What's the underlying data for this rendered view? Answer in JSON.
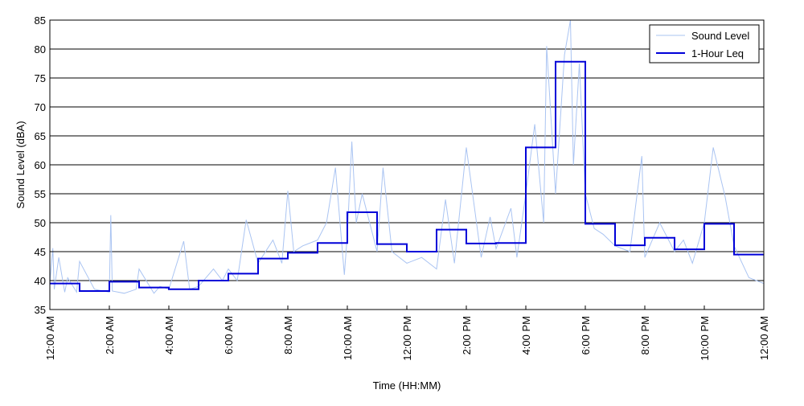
{
  "chart_data": {
    "type": "line",
    "title": "",
    "xlabel": "Time (HH:MM)",
    "ylabel": "Sound Level (dBA)",
    "xlim": [
      0,
      24
    ],
    "ylim": [
      35,
      85
    ],
    "grid": "horizontal",
    "legend_position": "top-right",
    "x_ticks": [
      {
        "x": 0,
        "label": "12:00 AM"
      },
      {
        "x": 2,
        "label": "2:00 AM"
      },
      {
        "x": 4,
        "label": "4:00 AM"
      },
      {
        "x": 6,
        "label": "6:00 AM"
      },
      {
        "x": 8,
        "label": "8:00 AM"
      },
      {
        "x": 10,
        "label": "10:00 AM"
      },
      {
        "x": 12,
        "label": "12:00 PM"
      },
      {
        "x": 14,
        "label": "2:00 PM"
      },
      {
        "x": 16,
        "label": "4:00 PM"
      },
      {
        "x": 18,
        "label": "6:00 PM"
      },
      {
        "x": 20,
        "label": "8:00 PM"
      },
      {
        "x": 22,
        "label": "10:00 PM"
      },
      {
        "x": 24,
        "label": "12:00 AM"
      }
    ],
    "y_ticks": [
      35,
      40,
      45,
      50,
      55,
      60,
      65,
      70,
      75,
      80,
      85
    ],
    "series": [
      {
        "name": "Sound Level",
        "color": "#aac4f2",
        "style": "thin-line",
        "x": [
          0,
          0.1,
          0.15,
          0.3,
          0.5,
          0.6,
          0.9,
          1.0,
          1.5,
          2.0,
          2.05,
          2.1,
          2.5,
          2.9,
          3.0,
          3.5,
          3.7,
          4.0,
          4.5,
          4.7,
          5.0,
          5.5,
          5.8,
          6.0,
          6.3,
          6.6,
          7.0,
          7.5,
          7.8,
          8.0,
          8.2,
          8.5,
          9.0,
          9.3,
          9.6,
          9.9,
          10.0,
          10.15,
          10.3,
          10.5,
          11.0,
          11.2,
          11.5,
          12.0,
          12.5,
          13.0,
          13.3,
          13.6,
          14.0,
          14.5,
          14.8,
          15.0,
          15.5,
          15.7,
          16.0,
          16.3,
          16.6,
          16.7,
          17.0,
          17.3,
          17.5,
          17.6,
          17.8,
          18.0,
          18.3,
          18.6,
          19.0,
          19.5,
          19.9,
          20.0,
          20.5,
          21.0,
          21.3,
          21.6,
          22.0,
          22.3,
          22.7,
          23.0,
          23.5,
          24.0
        ],
        "values": [
          39.5,
          45.6,
          38.5,
          44.0,
          38.0,
          40.5,
          38.0,
          43.3,
          38.5,
          38.0,
          51.3,
          38.2,
          37.8,
          38.5,
          42.0,
          37.8,
          39.0,
          38.5,
          46.8,
          38.5,
          39.0,
          42.0,
          40.0,
          42.0,
          40.0,
          50.5,
          43.0,
          47.0,
          43.0,
          55.5,
          45.0,
          46.0,
          47.0,
          50.0,
          59.5,
          41.0,
          48.0,
          64.0,
          50.0,
          55.0,
          45.0,
          59.5,
          45.0,
          43.0,
          44.0,
          42.0,
          54.0,
          43.0,
          63.0,
          44.0,
          51.0,
          45.5,
          52.5,
          44.0,
          55.0,
          67.0,
          50.0,
          80.5,
          55.0,
          79.0,
          85.0,
          60.0,
          77.5,
          55.0,
          49.0,
          48.0,
          46.0,
          45.0,
          61.5,
          44.0,
          50.0,
          45.0,
          47.0,
          43.0,
          50.0,
          63.0,
          54.5,
          46.0,
          40.5,
          39.5
        ]
      },
      {
        "name": "1-Hour Leq",
        "color": "#0000d8",
        "style": "step",
        "x": [
          0,
          1,
          2,
          3,
          4,
          5,
          6,
          7,
          8,
          9,
          10,
          11,
          12,
          13,
          14,
          15,
          16,
          17,
          18,
          19,
          20,
          21,
          22,
          23
        ],
        "values": [
          39.5,
          38.2,
          39.8,
          38.8,
          38.5,
          40.0,
          41.2,
          43.8,
          44.8,
          46.5,
          51.8,
          46.3,
          45.0,
          48.8,
          46.4,
          46.5,
          63.0,
          77.8,
          49.8,
          46.1,
          47.4,
          45.4,
          49.8,
          44.5
        ]
      }
    ]
  }
}
